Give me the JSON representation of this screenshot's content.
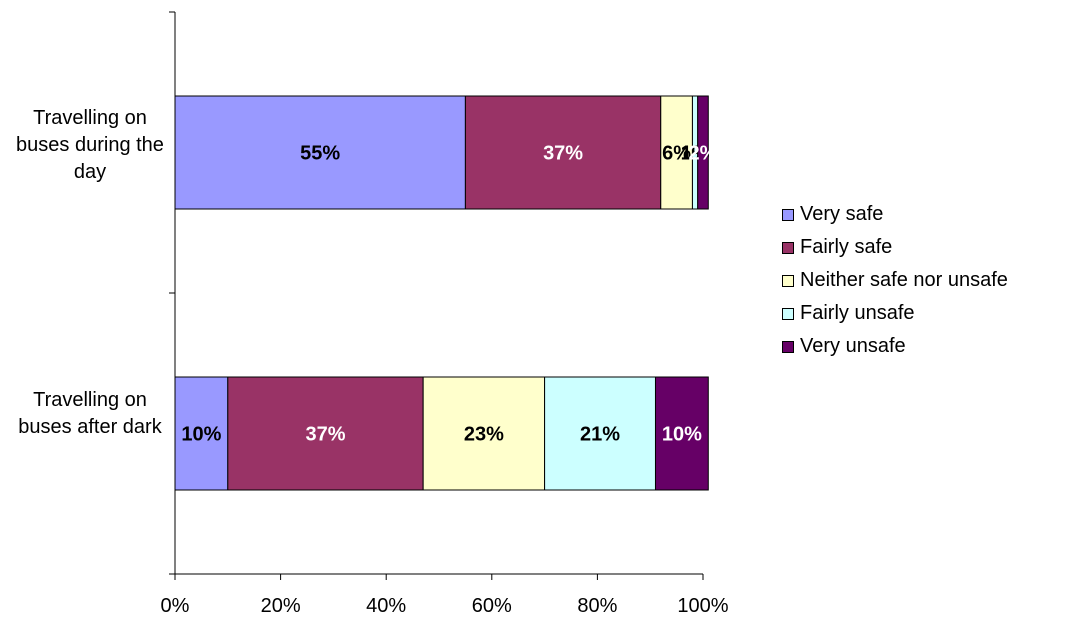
{
  "chart_data": {
    "type": "bar",
    "orientation": "horizontal",
    "stacked": "percent",
    "categories": [
      "Travelling on buses during the day",
      "Travelling on buses after dark"
    ],
    "series": [
      {
        "name": "Very safe",
        "color": "#9999ff",
        "label_color": "#000000",
        "values": [
          55,
          10
        ],
        "labels": [
          "55%",
          "10%"
        ]
      },
      {
        "name": "Fairly safe",
        "color": "#993366",
        "label_color": "#ffffff",
        "values": [
          37,
          37
        ],
        "labels": [
          "37%",
          "37%"
        ]
      },
      {
        "name": "Neither safe nor unsafe",
        "color": "#ffffcc",
        "label_color": "#000000",
        "values": [
          6,
          23
        ],
        "labels": [
          "6%",
          "23%"
        ]
      },
      {
        "name": "Fairly unsafe",
        "color": "#ccffff",
        "label_color": "#000000",
        "values": [
          1,
          21
        ],
        "labels": [
          "1%",
          "21%"
        ]
      },
      {
        "name": "Very unsafe",
        "color": "#660066",
        "label_color": "#ffffff",
        "values": [
          2,
          10
        ],
        "labels": [
          "2%",
          "10%"
        ]
      }
    ],
    "xaxis": {
      "ticks": [
        "0%",
        "20%",
        "40%",
        "60%",
        "80%",
        "100%"
      ],
      "range": [
        0,
        100
      ]
    },
    "legend_position": "right",
    "grid": false
  },
  "categories_display": {
    "day": "Travelling on buses during the day",
    "dark": "Travelling on buses after dark"
  }
}
